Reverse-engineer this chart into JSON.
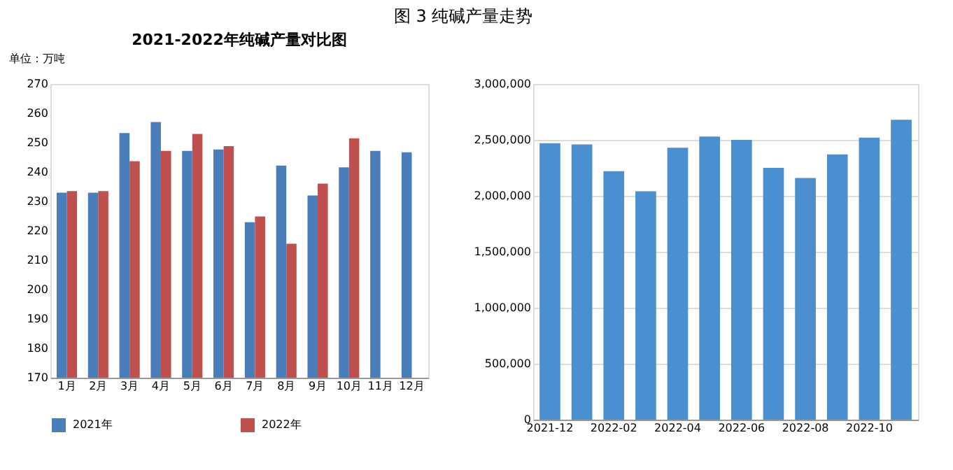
{
  "chart_data": [
    {
      "type": "bar",
      "title": "2021-2022年纯碱产量对比图",
      "ylabel": "单位：万吨",
      "annotations": [
        "图 3 纯碱产量走势"
      ],
      "categories": [
        "1月",
        "2月",
        "3月",
        "4月",
        "5月",
        "6月",
        "7月",
        "8月",
        "9月",
        "10月",
        "11月",
        "12月"
      ],
      "series": [
        {
          "name": "2021年",
          "color": "#4a7ebb",
          "values": [
            233,
            233,
            253.3,
            257,
            247.2,
            247.7,
            222.9,
            242.2,
            232,
            241.6,
            247.2,
            246.7
          ]
        },
        {
          "name": "2022年",
          "color": "#c0504d",
          "values": [
            233.5,
            233.5,
            243.7,
            247.2,
            253,
            248.8,
            224.9,
            215.6,
            236.1,
            251.5,
            null,
            null
          ]
        }
      ],
      "ylim": [
        170,
        270
      ],
      "yticks": [
        170,
        180,
        190,
        200,
        210,
        220,
        230,
        240,
        250,
        260,
        270
      ],
      "grid": false,
      "legend": "bottom"
    },
    {
      "type": "bar",
      "categories": [
        "2021-12",
        null,
        "2022-02",
        null,
        "2022-04",
        null,
        "2022-06",
        null,
        "2022-08",
        null,
        "2022-10",
        null
      ],
      "values": [
        2470000,
        2460000,
        2220000,
        2040000,
        2430000,
        2530000,
        2500000,
        2250000,
        2160000,
        2370000,
        2520000,
        2680000
      ],
      "color": "#4a8fd0",
      "ylim": [
        0,
        3000000
      ],
      "yticks": [
        0,
        {
          "value": 500000,
          "label": "500,000"
        },
        {
          "value": 1000000,
          "label": "1,000,000"
        },
        {
          "value": 1500000,
          "label": "1,500,000"
        },
        {
          "value": 2000000,
          "label": "2,000,000"
        },
        {
          "value": 2500000,
          "label": "2,500,000"
        },
        {
          "value": 3000000,
          "label": "3,000,000"
        }
      ],
      "grid": "y",
      "legend": false
    }
  ]
}
